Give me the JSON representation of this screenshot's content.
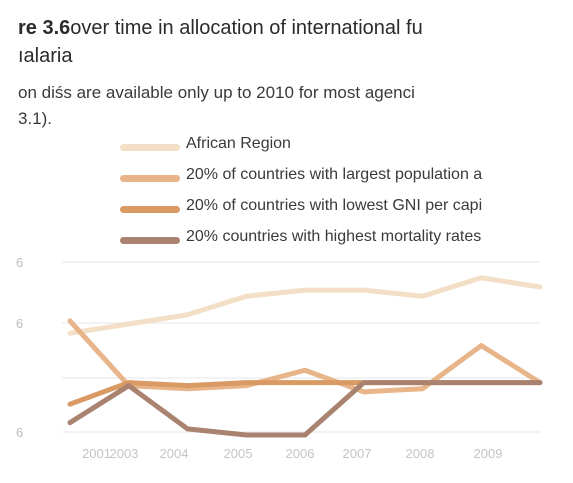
{
  "figure": {
    "title_number": "re 3.6",
    "title_line1": "over time in allocation of international fu",
    "title_line2": "ıalaria",
    "note_line1": "on diśs are available only up to 2010 for most agenci",
    "note_line2": "3.1)."
  },
  "chart_data": {
    "type": "line",
    "title": "",
    "xlabel": "",
    "ylabel": "",
    "x_tick_labels": [
      "2001",
      "2003",
      "2004",
      "2005",
      "2006",
      "2007",
      "2008",
      "2009"
    ],
    "y_tick_labels": [
      "6",
      "6",
      "",
      "6"
    ],
    "x": [
      2002,
      2003,
      2004,
      2005,
      2006,
      2007,
      2008,
      2009,
      2010
    ],
    "ylim": [
      -0.8,
      5.2
    ],
    "grid": true,
    "legend_position": "top",
    "series": [
      {
        "name": "African Region",
        "color": "#f3dfc6",
        "values": [
          2.5,
          2.8,
          3.1,
          3.7,
          3.9,
          3.9,
          3.7,
          4.3,
          4.0
        ]
      },
      {
        "name": "20% of countries with largest population a",
        "color": "#e8b489",
        "values": [
          2.9,
          0.8,
          0.7,
          0.8,
          1.3,
          0.6,
          0.7,
          2.1,
          0.9
        ]
      },
      {
        "name": "20% of countries with lowest GNI per capi",
        "color": "#d99a64",
        "values": [
          0.2,
          0.9,
          0.8,
          0.9,
          0.9,
          0.9,
          0.9,
          0.9,
          0.9
        ]
      },
      {
        "name": "20% countries with highest mortality rates",
        "color": "#a98270",
        "values": [
          -0.4,
          0.8,
          -0.6,
          -0.8,
          -0.8,
          0.9,
          0.9,
          0.9,
          0.9
        ]
      }
    ]
  }
}
